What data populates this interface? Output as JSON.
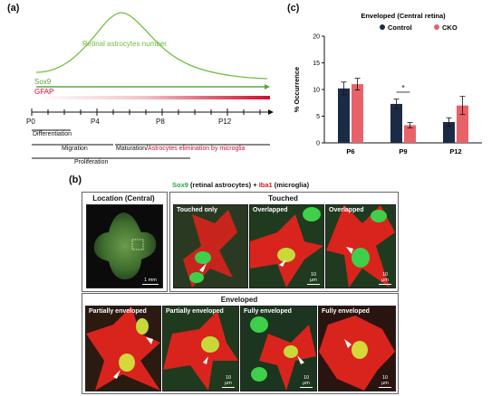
{
  "panel_a": {
    "letter": "(a)",
    "curve_label": "Retinal astrocytes number",
    "sox9_label": "Sox9",
    "gfap_label": "GFAP",
    "ticks": [
      "P0",
      "P4",
      "P8",
      "P12"
    ],
    "phases": {
      "differentiation": "Differentiation",
      "migration": "Migration",
      "maturation": "Maturation/",
      "elimination": "Astrocytes elimination by microglia",
      "proliferation": "Proliferation"
    },
    "colors": {
      "curve": "#6fbf3f",
      "sox9": "#5aa83a",
      "gfap": "#c8102e"
    }
  },
  "panel_b": {
    "letter": "(b)",
    "stain_title_green": "Sox9",
    "stain_title_mid": " (retinal astrocytes) + ",
    "stain_title_red": "Iba1",
    "stain_title_end": " (microglia)",
    "location_title": "Location (Central)",
    "touched_title": "Touched",
    "enveloped_title": "Enveloped",
    "tiles_top": [
      "Touched only",
      "Overlapped",
      "Overlapped"
    ],
    "tiles_bottom": [
      "Partially enveloped",
      "Partially enveloped",
      "Fully enveloped",
      "Fully enveloped"
    ],
    "scale_location": "1 mm",
    "scale_tile": "10 μm"
  },
  "panel_c": {
    "letter": "(c)",
    "legend": [
      "Control",
      "CKO"
    ],
    "significance": "*"
  },
  "chart_data": {
    "type": "bar",
    "title": "Enveloped (Central retina)",
    "xlabel": "",
    "ylabel": "% Occurrence",
    "categories": [
      "P6",
      "P9",
      "P12"
    ],
    "ylim": [
      0,
      20
    ],
    "yticks": [
      0,
      5,
      10,
      15,
      20
    ],
    "legend_position": "top-right",
    "series": [
      {
        "name": "Control",
        "color": "#1c2b45",
        "values": [
          10.2,
          7.3,
          3.9
        ],
        "errors": [
          1.2,
          0.9,
          0.8
        ]
      },
      {
        "name": "CKO",
        "color": "#e8626a",
        "values": [
          11.0,
          3.3,
          7.0
        ],
        "errors": [
          1.1,
          0.5,
          1.7
        ]
      }
    ]
  }
}
